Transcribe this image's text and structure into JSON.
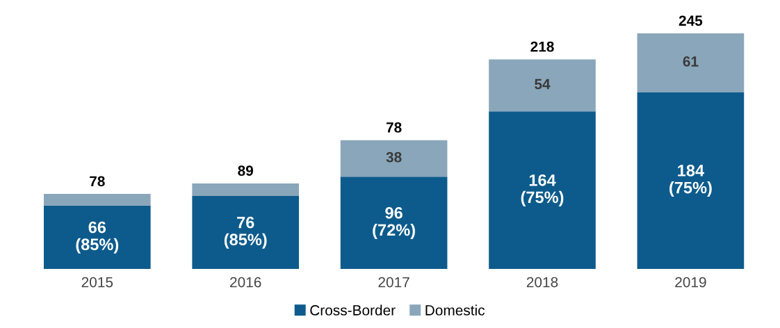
{
  "chart_data": {
    "type": "bar",
    "stacked": true,
    "categories": [
      "2015",
      "2016",
      "2017",
      "2018",
      "2019"
    ],
    "series": [
      {
        "name": "Cross-Border",
        "color": "#0d5b8c",
        "values": [
          66,
          76,
          96,
          164,
          184
        ],
        "value_labels": [
          "66\n(85%)",
          "76\n(85%)",
          "96\n(72%)",
          "164\n(75%)",
          "184\n(75%)"
        ]
      },
      {
        "name": "Domestic",
        "color": "#8aa6ba",
        "values": [
          12,
          13,
          38,
          54,
          61
        ],
        "value_labels": [
          null,
          null,
          "38",
          "54",
          "61"
        ]
      }
    ],
    "annotations": [
      {
        "text": "78",
        "x": "2015",
        "y": 78
      },
      {
        "text": "89",
        "x": "2016",
        "y": 89
      },
      {
        "text": "78",
        "x": "2017",
        "y": 134
      },
      {
        "text": "218",
        "x": "2018",
        "y": 218
      },
      {
        "text": "245",
        "x": "2019",
        "y": 245
      }
    ],
    "tick_labels": "x",
    "grid": false,
    "legend": "bottom"
  }
}
